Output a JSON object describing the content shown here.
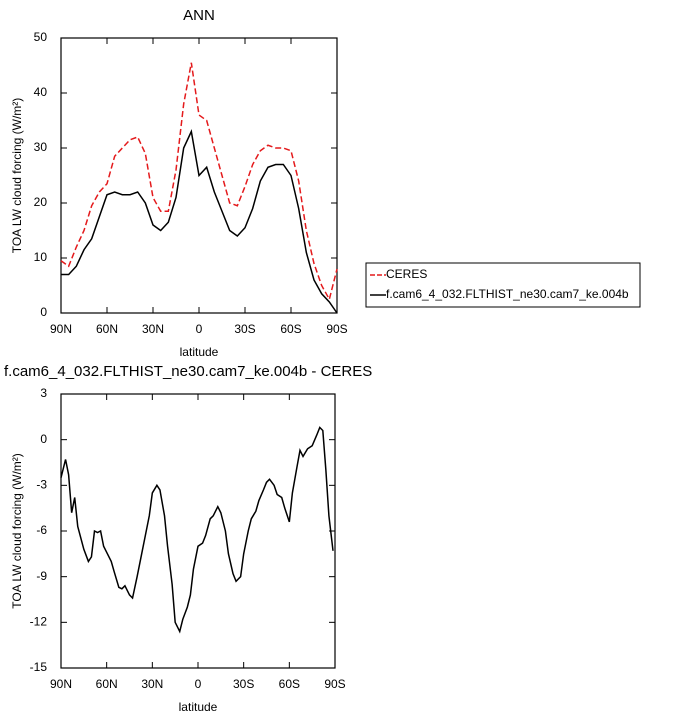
{
  "chart_data": [
    {
      "type": "line",
      "title": "ANN",
      "xlabel": "latitude",
      "ylabel": "TOA LW cloud forcing (W/m²)",
      "x": [
        90,
        85,
        80,
        75,
        70,
        65,
        60,
        55,
        50,
        45,
        40,
        35,
        30,
        25,
        20,
        15,
        10,
        5,
        0,
        -5,
        -10,
        -15,
        -20,
        -25,
        -30,
        -35,
        -40,
        -45,
        -50,
        -55,
        -60,
        -65,
        -70,
        -75,
        -80,
        -85,
        -90
      ],
      "series": [
        {
          "name": "CERES",
          "color": "#e41a1c",
          "dashed": true,
          "values": [
            9.5,
            8.5,
            12,
            15,
            19.5,
            22,
            23.5,
            28.5,
            30,
            31.5,
            32,
            29,
            21,
            18.5,
            18.5,
            26,
            38,
            45.5,
            36,
            35,
            30,
            25,
            20,
            19.5,
            23,
            27,
            29.5,
            30.5,
            30,
            30,
            29.5,
            24,
            15,
            9,
            5,
            2.5,
            8
          ]
        },
        {
          "name": "f.cam6_4_032.FLTHIST_ne30.cam7_ke.004b",
          "color": "#000000",
          "dashed": false,
          "values": [
            7,
            7,
            8.5,
            11.5,
            13.5,
            17.5,
            21.5,
            22,
            21.5,
            21.5,
            22,
            20,
            16,
            15,
            16.5,
            21,
            30,
            33,
            25,
            26.5,
            22,
            18.5,
            15,
            14,
            15.5,
            19,
            24,
            26.5,
            27,
            27,
            25,
            19,
            11,
            6,
            3.5,
            2,
            0
          ]
        }
      ],
      "xlim": [
        90,
        -90
      ],
      "xticks": [
        {
          "value": 90,
          "label": "90N"
        },
        {
          "value": 60,
          "label": "60N"
        },
        {
          "value": 30,
          "label": "30N"
        },
        0,
        {
          "value": -30,
          "label": "30S"
        },
        {
          "value": -60,
          "label": "60S"
        },
        {
          "value": -90,
          "label": "90S"
        }
      ],
      "ylim": [
        0,
        50
      ],
      "yticks": [
        0,
        10,
        20,
        30,
        40,
        50
      ],
      "legend": "right"
    },
    {
      "type": "line",
      "title": "f.cam6_4_032.FLTHIST_ne30.cam7_ke.004b - CERES",
      "xlabel": "latitude",
      "ylabel": "TOA LW cloud forcing (W/m²)",
      "x": [
        90,
        87,
        85,
        83,
        81,
        79,
        75,
        72,
        70,
        68,
        66,
        64,
        62,
        60,
        57,
        55,
        52,
        50,
        48,
        45,
        43,
        40,
        37,
        35,
        32,
        30,
        27,
        25,
        22,
        20,
        17,
        15,
        12,
        10,
        7,
        5,
        3,
        0,
        -3,
        -5,
        -8,
        -10,
        -13,
        -15,
        -18,
        -20,
        -23,
        -25,
        -28,
        -30,
        -33,
        -35,
        -38,
        -40,
        -43,
        -45,
        -47,
        -50,
        -52,
        -55,
        -57,
        -60,
        -62,
        -65,
        -67,
        -69,
        -72,
        -75,
        -78,
        -80,
        -82,
        -84,
        -86,
        -88.7
      ],
      "values": [
        -2.5,
        -1.3,
        -2.3,
        -4.8,
        -3.8,
        -5.7,
        -7.2,
        -8,
        -7.7,
        -6,
        -6.1,
        -6,
        -7,
        -7.4,
        -8,
        -8.7,
        -9.7,
        -9.8,
        -9.6,
        -10.2,
        -10.4,
        -9,
        -7.5,
        -6.5,
        -5,
        -3.5,
        -3,
        -3.3,
        -5,
        -7,
        -9.5,
        -12,
        -12.6,
        -11.8,
        -11,
        -10.2,
        -8.5,
        -7,
        -6.8,
        -6.3,
        -5.2,
        -5,
        -4.4,
        -4.8,
        -6,
        -7.5,
        -8.8,
        -9.3,
        -9,
        -7.5,
        -6,
        -5.2,
        -4.7,
        -4,
        -3.3,
        -2.8,
        -2.6,
        -3,
        -3.6,
        -3.8,
        -4.5,
        -5.4,
        -3.5,
        -1.8,
        -0.7,
        -1.1,
        -0.6,
        -0.4,
        0.3,
        0.8,
        0.6,
        -2,
        -5,
        -7.3
      ],
      "color": "#000000",
      "xlim": [
        90,
        -90
      ],
      "xticks": [
        {
          "value": 90,
          "label": "90N"
        },
        {
          "value": 60,
          "label": "60N"
        },
        {
          "value": 30,
          "label": "30N"
        },
        0,
        {
          "value": -30,
          "label": "30S"
        },
        {
          "value": -60,
          "label": "60S"
        },
        {
          "value": -90,
          "label": "90S"
        }
      ],
      "ylim": [
        -15,
        3
      ],
      "yticks": [
        3,
        0,
        -3,
        -6,
        -9,
        -12,
        -15
      ]
    }
  ]
}
